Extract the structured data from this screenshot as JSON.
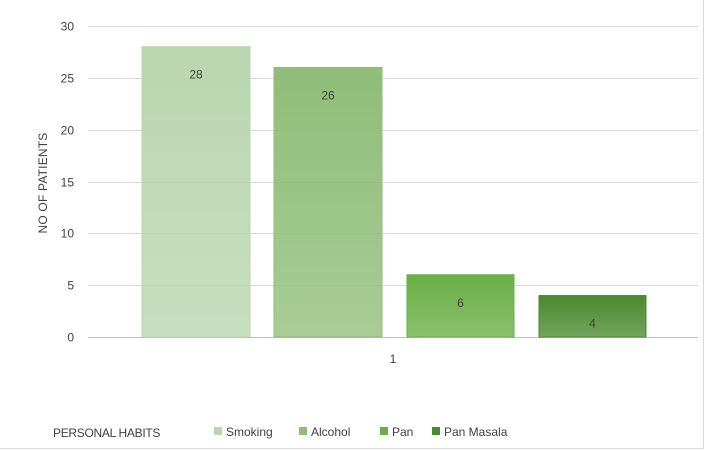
{
  "chart_data": {
    "type": "bar",
    "categories": [
      "1"
    ],
    "series": [
      {
        "name": "Smoking",
        "values": [
          28
        ],
        "color": "#b9d6ad"
      },
      {
        "name": "Alcohol",
        "values": [
          26
        ],
        "color": "#8fbe78"
      },
      {
        "name": "Pan",
        "values": [
          6
        ],
        "color": "#6aae45"
      },
      {
        "name": "Pan Masala",
        "values": [
          4
        ],
        "color": "#4a8a2e"
      }
    ],
    "ylabel": "NO OF PATIENTS",
    "xlabel": "",
    "ylim": [
      0,
      30
    ],
    "yticks": [
      0,
      5,
      10,
      15,
      20,
      25,
      30
    ],
    "grid": true,
    "data_labels": true,
    "legend": {
      "title": "PERSONAL HABITS",
      "placement": "bottom"
    }
  }
}
